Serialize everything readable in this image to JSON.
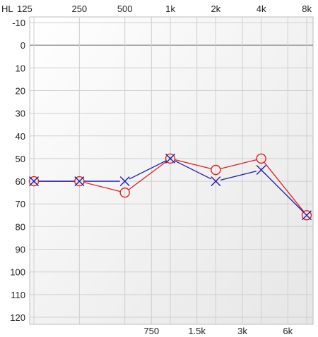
{
  "chart_data": {
    "type": "line",
    "title": "",
    "corner_label": "HL",
    "x_scale": "log",
    "top_ticks": [
      "125",
      "250",
      "500",
      "1k",
      "2k",
      "4k",
      "8k"
    ],
    "top_tick_values": [
      125,
      250,
      500,
      1000,
      2000,
      4000,
      8000
    ],
    "bottom_ticks": [
      "750",
      "1.5k",
      "3k",
      "6k"
    ],
    "bottom_tick_values": [
      750,
      1500,
      3000,
      6000
    ],
    "y_ticks": [
      "-10",
      "0",
      "10",
      "20",
      "30",
      "40",
      "50",
      "60",
      "70",
      "80",
      "90",
      "100",
      "110",
      "120"
    ],
    "y_tick_values": [
      -10,
      0,
      10,
      20,
      30,
      40,
      50,
      60,
      70,
      80,
      90,
      100,
      110,
      120
    ],
    "xlim": [
      125,
      8000
    ],
    "ylim": [
      -10,
      120
    ],
    "y_inverted": true,
    "grid": true,
    "reference_line_y": 0,
    "x": [
      125,
      250,
      500,
      1000,
      2000,
      4000,
      8000
    ],
    "series": [
      {
        "marker": "circle",
        "color": "#e02020",
        "values": [
          60,
          60,
          65,
          50,
          55,
          50,
          75
        ]
      },
      {
        "marker": "x",
        "color": "#1a1aa8",
        "values": [
          60,
          60,
          60,
          50,
          60,
          55,
          75
        ]
      }
    ]
  }
}
